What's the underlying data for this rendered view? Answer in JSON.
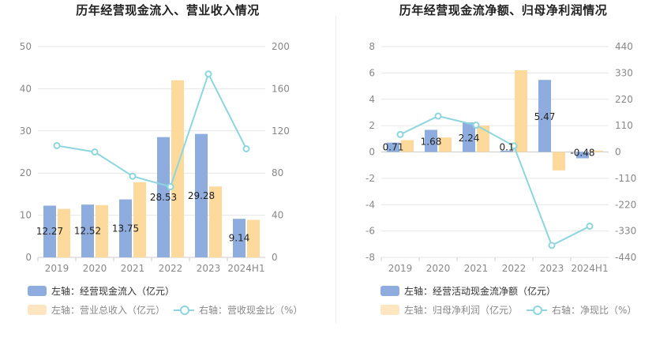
{
  "colors": {
    "bar1": "#8eadde",
    "bar2": "#fdd99b",
    "line": "#8dd6de",
    "grid": "#e6e6e6",
    "axis": "#cccccc"
  },
  "chart_data": [
    {
      "type": "bar",
      "title": "历年经营现金流入、营业收入情况",
      "categories": [
        "2019",
        "2020",
        "2021",
        "2022",
        "2023",
        "2024H1"
      ],
      "left_axis": {
        "min": 0,
        "max": 50,
        "ticks": [
          "0",
          "10",
          "20",
          "30",
          "40",
          "50"
        ]
      },
      "right_axis": {
        "min": 0,
        "max": 200,
        "ticks": [
          "0",
          "40",
          "80",
          "120",
          "160",
          "200"
        ]
      },
      "series": [
        {
          "name": "左轴：经营现金流入（亿元）",
          "kind": "bar",
          "axis": "left",
          "values": [
            12.27,
            12.52,
            13.75,
            28.53,
            29.28,
            9.14
          ],
          "labels": [
            "12.27",
            "12.52",
            "13.75",
            "28.53",
            "29.28",
            "9.14"
          ]
        },
        {
          "name": "左轴：营业总收入（亿元）",
          "kind": "bar",
          "axis": "left",
          "values": [
            11.5,
            12.4,
            17.8,
            42.0,
            16.8,
            8.9
          ]
        },
        {
          "name": "右轴：营收现金比（%）",
          "kind": "line",
          "axis": "right",
          "values": [
            106,
            100,
            77,
            67,
            174,
            103
          ]
        }
      ]
    },
    {
      "type": "bar",
      "title": "历年经营现金流净额、归母净利润情况",
      "categories": [
        "2019",
        "2020",
        "2021",
        "2022",
        "2023",
        "2024H1"
      ],
      "left_axis": {
        "min": -8,
        "max": 8,
        "ticks": [
          "-8",
          "-6",
          "-4",
          "-2",
          "0",
          "2",
          "4",
          "6",
          "8"
        ]
      },
      "right_axis": {
        "min": -440,
        "max": 440,
        "ticks": [
          "-440",
          "-330",
          "-220",
          "-110",
          "0",
          "110",
          "220",
          "330",
          "440"
        ]
      },
      "series": [
        {
          "name": "左轴：经营活动现金流净额（亿元）",
          "kind": "bar",
          "axis": "left",
          "values": [
            0.71,
            1.68,
            2.24,
            0.1,
            5.47,
            -0.48
          ],
          "labels": [
            "0.71",
            "1.68",
            "2.24",
            "0.1",
            "5.47",
            "-0.48"
          ]
        },
        {
          "name": "左轴：归母净利润（亿元）",
          "kind": "bar",
          "axis": "left",
          "values": [
            0.9,
            1.1,
            2.0,
            6.2,
            -1.4,
            0.1
          ]
        },
        {
          "name": "右轴：净现比（%）",
          "kind": "line",
          "axis": "right",
          "values": [
            73,
            150,
            112,
            25,
            -390,
            -310
          ]
        }
      ]
    }
  ]
}
